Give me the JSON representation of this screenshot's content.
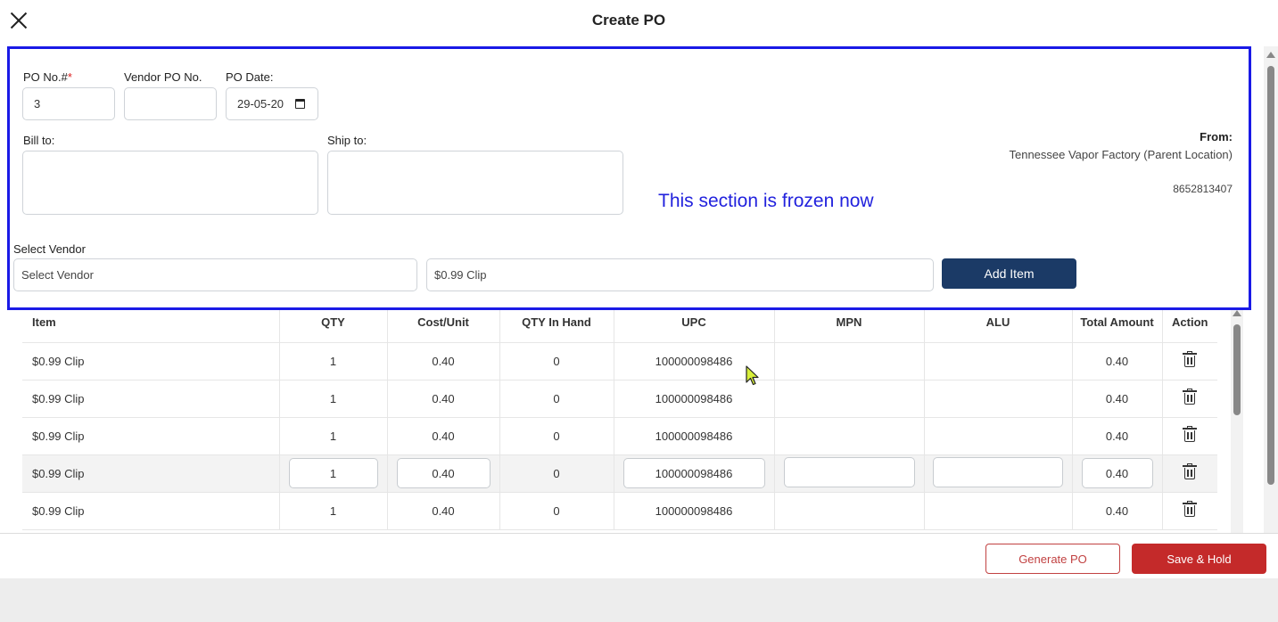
{
  "header": {
    "title": "Create PO"
  },
  "form": {
    "po_no_label": "PO No.#",
    "po_no_required": "*",
    "po_no_value": "3",
    "vendor_po_label": "Vendor PO No.",
    "vendor_po_value": "",
    "po_date_label": "PO Date:",
    "po_date_value": "29-05-20",
    "bill_to_label": "Bill to:",
    "ship_to_label": "Ship to:",
    "from_label": "From:",
    "from_name": "Tennessee Vapor Factory (Parent Location)",
    "from_phone": "8652813407",
    "frozen_note": "This section is frozen now",
    "select_vendor_label": "Select Vendor",
    "select_vendor_placeholder": "Select Vendor",
    "item_search_value": "$0.99 Clip",
    "add_item_label": "Add Item"
  },
  "table": {
    "columns": [
      "Item",
      "QTY",
      "Cost/Unit",
      "QTY In Hand",
      "UPC",
      "MPN",
      "ALU",
      "Total Amount",
      "Action"
    ],
    "rows": [
      {
        "item": "$0.99 Clip",
        "qty": "1",
        "cost": "0.40",
        "in_hand": "0",
        "upc": "100000098486",
        "mpn": "",
        "alu": "",
        "total": "0.40"
      },
      {
        "item": "$0.99 Clip",
        "qty": "1",
        "cost": "0.40",
        "in_hand": "0",
        "upc": "100000098486",
        "mpn": "",
        "alu": "",
        "total": "0.40"
      },
      {
        "item": "$0.99 Clip",
        "qty": "1",
        "cost": "0.40",
        "in_hand": "0",
        "upc": "100000098486",
        "mpn": "",
        "alu": "",
        "total": "0.40"
      },
      {
        "item": "$0.99 Clip",
        "qty": "1",
        "cost": "0.40",
        "in_hand": "0",
        "upc": "100000098486",
        "mpn": "",
        "alu": "",
        "total": "0.40"
      },
      {
        "item": "$0.99 Clip",
        "qty": "1",
        "cost": "0.40",
        "in_hand": "0",
        "upc": "100000098486",
        "mpn": "",
        "alu": "",
        "total": "0.40"
      }
    ]
  },
  "footer": {
    "generate_label": "Generate PO",
    "save_label": "Save & Hold"
  },
  "colors": {
    "frozen_border": "#1a1ae6",
    "primary": "#1b3a66",
    "danger": "#c42a2a"
  },
  "icons": {
    "close": "close-icon",
    "calendar": "calendar-icon",
    "delete": "trash-icon",
    "cursor": "mouse-pointer-icon"
  }
}
